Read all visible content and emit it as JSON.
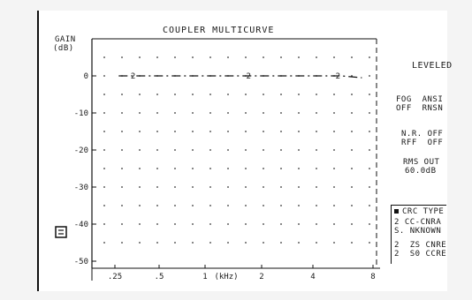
{
  "screen": {
    "title": "COUPLER MULTICURVE",
    "y_axis_label_line1": "GAIN",
    "y_axis_label_line2": "(dB)",
    "marker_icon": "square-marker-icon"
  },
  "chart_data": {
    "type": "line",
    "title": "COUPLER MULTICURVE",
    "ylabel": "GAIN (dB)",
    "xlabel": "(kHz)",
    "y_ticks": [
      "0",
      "-10",
      "-20",
      "-30",
      "-40",
      "-50"
    ],
    "ylim": [
      -55,
      5
    ],
    "x_tick_labels": [
      ".25",
      ".5",
      "1",
      "(kHz)",
      "2",
      "4",
      "8"
    ],
    "grid": "dotted",
    "series": [
      {
        "curve_label": "2",
        "x": [
          0.3,
          0.36,
          0.55,
          0.75,
          1.0,
          1.4,
          2.0,
          3.0,
          4.0,
          5.0,
          6.5
        ],
        "y": [
          0,
          0,
          0,
          0,
          0,
          0,
          0,
          0,
          0,
          0,
          -0.5
        ]
      }
    ],
    "curve_markers": [
      {
        "label": "2",
        "x": 0.36,
        "y": 0
      },
      {
        "label": "2",
        "x": 1.55,
        "y": 0
      },
      {
        "label": "2",
        "x": 4.8,
        "y": 0
      }
    ]
  },
  "side_panel": {
    "leveled": "LEVELED",
    "block1_line1": "FOG  ANSI",
    "block1_line2": "OFF  RNSN",
    "block2_line1": "N.R. OFF",
    "block2_line2": "RFF  OFF",
    "block3_line1": "RMS OUT",
    "block3_line2": "60.0dB",
    "block4_line1": "CRC TYPE",
    "block4_line2": "2 CC-CNRA",
    "block4_line3": "S. NKNOWN",
    "block5_line1": "2  ZS CNRE",
    "block5_line2": "2  S0 CCRE"
  }
}
